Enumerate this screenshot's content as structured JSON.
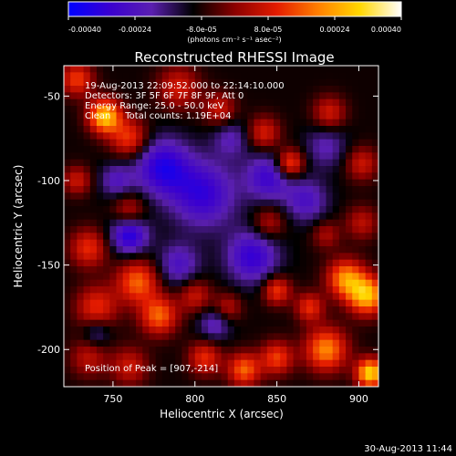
{
  "chart_data": {
    "type": "heatmap",
    "title": "Reconstructed RHESSI Image",
    "xlabel": "Heliocentric X (arcsec)",
    "ylabel": "Heliocentric Y (arcsec)",
    "xlim": [
      720,
      912
    ],
    "ylim": [
      -222,
      -32
    ],
    "xticks": [
      {
        "value": 750,
        "label": "750"
      },
      {
        "value": 800,
        "label": "800"
      },
      {
        "value": 850,
        "label": "850"
      },
      {
        "value": 900,
        "label": "900"
      }
    ],
    "yticks": [
      {
        "value": -50,
        "label": "-50"
      },
      {
        "value": -100,
        "label": "-100"
      },
      {
        "value": -150,
        "label": "-150"
      },
      {
        "value": -200,
        "label": "-200"
      }
    ],
    "colorbar": {
      "range": [
        -0.0004,
        0.0004
      ],
      "units": "(photons cm⁻² s⁻¹ asec⁻²)",
      "ticks": [
        {
          "value": -0.0004,
          "label": "-0.00040"
        },
        {
          "value": -0.00024,
          "label": "-0.00024"
        },
        {
          "value": -8e-05,
          "label": "-8.0e-05"
        },
        {
          "value": 8e-05,
          "label": "8.0e-05"
        },
        {
          "value": 0.00024,
          "label": "0.00024"
        },
        {
          "value": 0.0004,
          "label": "0.00040"
        }
      ],
      "colors": [
        "#0000ff",
        "#3a00d0",
        "#5a1fb0",
        "#000000",
        "#8b0000",
        "#e31b00",
        "#ff7f00",
        "#ffd700",
        "#ffffff"
      ]
    },
    "annotations": [
      "19-Aug-2013 22:09:52.000 to 22:14:10.000",
      "Detectors: 3F 5F 6F 7F 8F 9F, Att 0",
      "Energy Range: 25.0 - 50.0 keV",
      "Clean     Total counts: 1.19E+04"
    ],
    "peak_label": "Position of Peak = [907,-214]",
    "peak": {
      "x": 907,
      "y": -214
    },
    "blobs": [
      {
        "x": 745,
        "y": -62,
        "a": 0.00038,
        "s": 7
      },
      {
        "x": 760,
        "y": -75,
        "a": 0.00022,
        "s": 8
      },
      {
        "x": 728,
        "y": -40,
        "a": 0.00022,
        "s": 7
      },
      {
        "x": 728,
        "y": -100,
        "a": 0.00016,
        "s": 6
      },
      {
        "x": 735,
        "y": -140,
        "a": 0.0002,
        "s": 8
      },
      {
        "x": 760,
        "y": -118,
        "a": 0.00016,
        "s": 7
      },
      {
        "x": 790,
        "y": -45,
        "a": 0.00017,
        "s": 9
      },
      {
        "x": 815,
        "y": -58,
        "a": 0.00016,
        "s": 7
      },
      {
        "x": 842,
        "y": -72,
        "a": 0.00018,
        "s": 7
      },
      {
        "x": 858,
        "y": -90,
        "a": 0.00026,
        "s": 6
      },
      {
        "x": 882,
        "y": -60,
        "a": 0.00017,
        "s": 7
      },
      {
        "x": 902,
        "y": -90,
        "a": 0.00016,
        "s": 7
      },
      {
        "x": 902,
        "y": -125,
        "a": 0.00014,
        "s": 7
      },
      {
        "x": 845,
        "y": -125,
        "a": 0.00014,
        "s": 7
      },
      {
        "x": 880,
        "y": -132,
        "a": 0.00012,
        "s": 6
      },
      {
        "x": 765,
        "y": -160,
        "a": 0.00026,
        "s": 9
      },
      {
        "x": 740,
        "y": -175,
        "a": 0.0002,
        "s": 9
      },
      {
        "x": 778,
        "y": -180,
        "a": 0.00026,
        "s": 8
      },
      {
        "x": 800,
        "y": -168,
        "a": 0.00016,
        "s": 7
      },
      {
        "x": 820,
        "y": -175,
        "a": 0.00014,
        "s": 6
      },
      {
        "x": 850,
        "y": -165,
        "a": 0.00022,
        "s": 6
      },
      {
        "x": 870,
        "y": -175,
        "a": 0.0002,
        "s": 6
      },
      {
        "x": 892,
        "y": -158,
        "a": 0.0003,
        "s": 8
      },
      {
        "x": 905,
        "y": -168,
        "a": 0.00036,
        "s": 8
      },
      {
        "x": 880,
        "y": -200,
        "a": 0.0003,
        "s": 9
      },
      {
        "x": 907,
        "y": -214,
        "a": 0.0004,
        "s": 6
      },
      {
        "x": 850,
        "y": -205,
        "a": 0.00022,
        "s": 7
      },
      {
        "x": 830,
        "y": -212,
        "a": 0.00026,
        "s": 7
      },
      {
        "x": 806,
        "y": -205,
        "a": 0.0002,
        "s": 7
      },
      {
        "x": 760,
        "y": -210,
        "a": 0.00016,
        "s": 8
      },
      {
        "x": 735,
        "y": -205,
        "a": 0.00014,
        "s": 8
      },
      {
        "x": 780,
        "y": -92,
        "a": -0.00024,
        "s": 12
      },
      {
        "x": 760,
        "y": -132,
        "a": -0.00026,
        "s": 8
      },
      {
        "x": 805,
        "y": -108,
        "a": -0.00022,
        "s": 14
      },
      {
        "x": 845,
        "y": -98,
        "a": -0.0002,
        "s": 10
      },
      {
        "x": 835,
        "y": -145,
        "a": -0.00022,
        "s": 11
      },
      {
        "x": 868,
        "y": -112,
        "a": -0.00016,
        "s": 9
      },
      {
        "x": 880,
        "y": -80,
        "a": -0.00012,
        "s": 9
      },
      {
        "x": 790,
        "y": -150,
        "a": -0.00016,
        "s": 9
      },
      {
        "x": 822,
        "y": -75,
        "a": -0.00012,
        "s": 8
      },
      {
        "x": 812,
        "y": -185,
        "a": -0.00014,
        "s": 7
      },
      {
        "x": 740,
        "y": -190,
        "a": -0.00012,
        "s": 6
      },
      {
        "x": 752,
        "y": -100,
        "a": -0.00014,
        "s": 7
      }
    ]
  },
  "footer": {
    "date": "30-Aug-2013 11:44"
  }
}
